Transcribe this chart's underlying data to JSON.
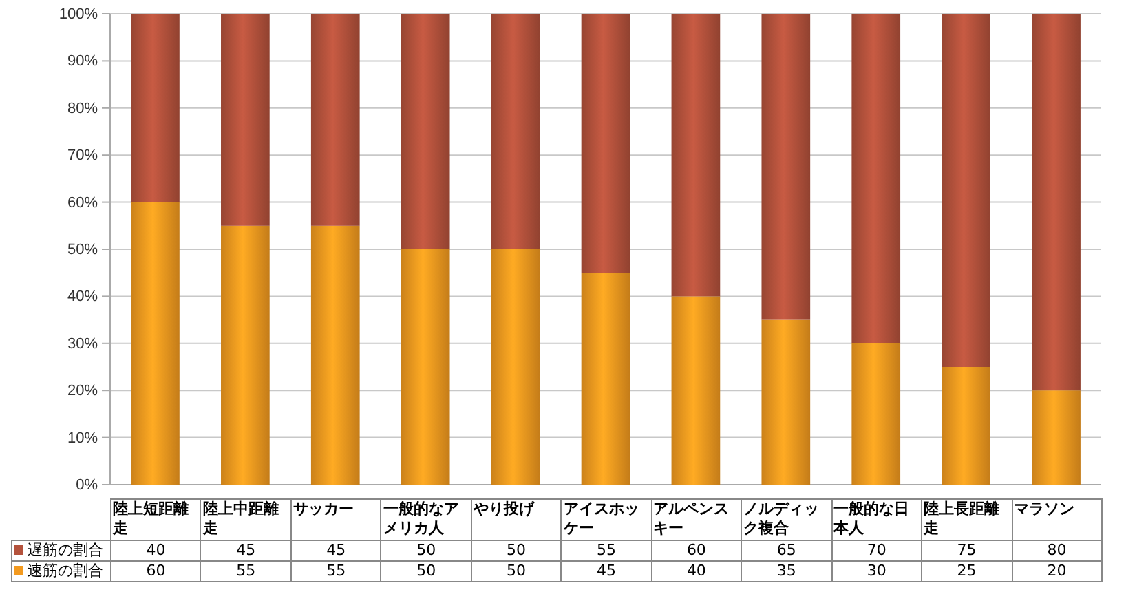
{
  "chart_data": {
    "type": "bar",
    "stacked": true,
    "categories": [
      "陸上短距離走",
      "陸上中距離走",
      "サッカー",
      "一般的なアメリカ人",
      "やり投げ",
      "アイスホッケー",
      "アルペンスキー",
      "ノルディック複合",
      "一般的な日本人",
      "陸上長距離走",
      "マラソン"
    ],
    "series": [
      {
        "name": "速筋の割合",
        "color": "#f39a1f",
        "values": [
          60,
          55,
          55,
          50,
          50,
          45,
          40,
          35,
          30,
          25,
          20
        ]
      },
      {
        "name": "遅筋の割合",
        "color": "#b4523c",
        "values": [
          40,
          45,
          45,
          50,
          50,
          55,
          60,
          65,
          70,
          75,
          80
        ]
      }
    ],
    "ylim": [
      0,
      100
    ],
    "yticks": [
      {
        "value": 0,
        "label": "0%"
      },
      {
        "value": 10,
        "label": "10%"
      },
      {
        "value": 20,
        "label": "20%"
      },
      {
        "value": 30,
        "label": "30%"
      },
      {
        "value": 40,
        "label": "40%"
      },
      {
        "value": 50,
        "label": "50%"
      },
      {
        "value": 60,
        "label": "60%"
      },
      {
        "value": 70,
        "label": "70%"
      },
      {
        "value": 80,
        "label": "80%"
      },
      {
        "value": 90,
        "label": "90%"
      },
      {
        "value": 100,
        "label": "100%"
      }
    ],
    "grid": true,
    "legend": "bottom",
    "data_labels": true
  }
}
